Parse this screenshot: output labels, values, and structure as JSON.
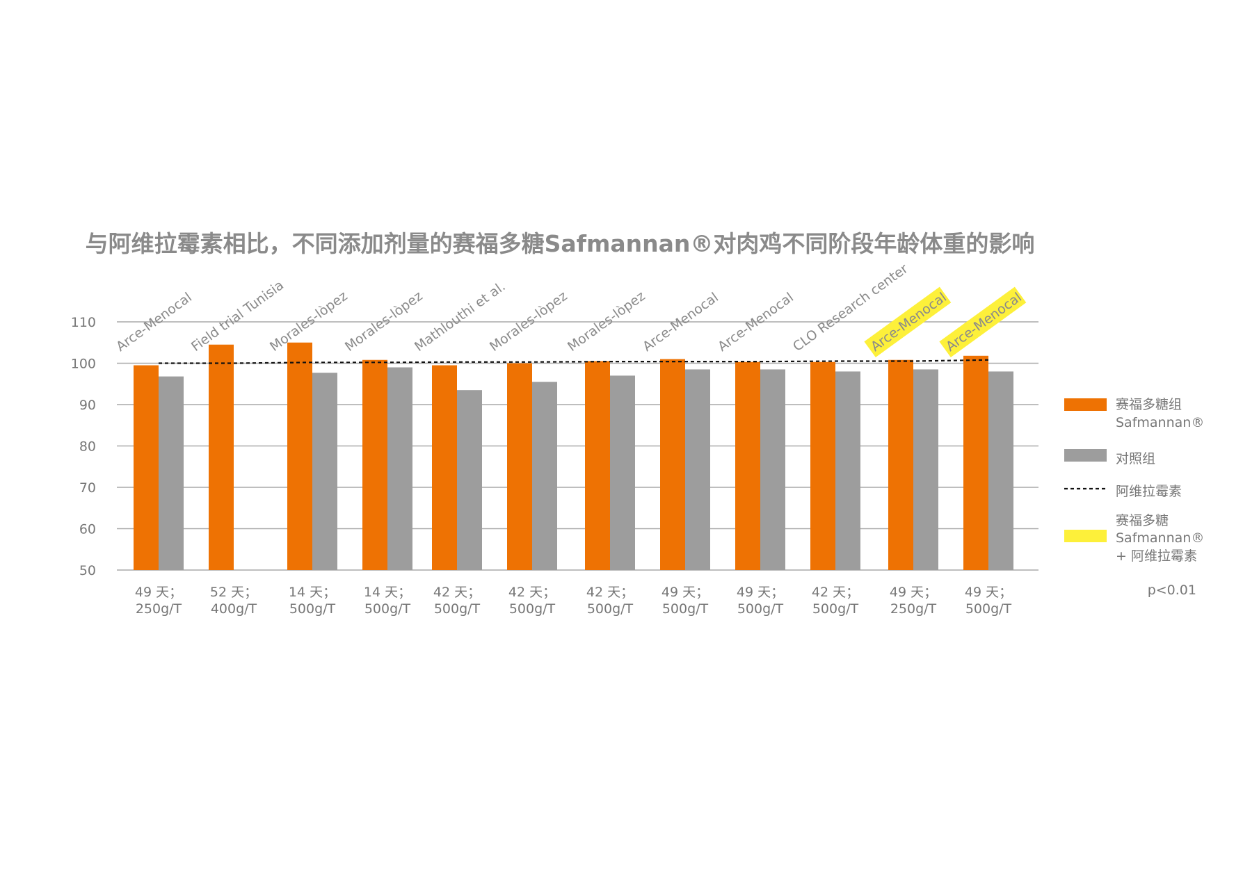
{
  "chart_data": {
    "type": "bar",
    "title": "与阿维拉霉素相比，不同添加剂量的赛福多糖Safmannan®对肉鸡不同阶段年龄体重的影响",
    "ylim": [
      50,
      110
    ],
    "yticks": [
      50,
      60,
      70,
      80,
      90,
      100,
      110
    ],
    "grid": true,
    "legend_position": "right",
    "categories": [
      {
        "line1": "49 天；",
        "line2": "250g/T",
        "study": "Arce-Menocal",
        "highlight": false
      },
      {
        "line1": "52 天；",
        "line2": "400g/T",
        "study": "Field trial Tunisia",
        "highlight": false
      },
      {
        "line1": "14 天；",
        "line2": "500g/T",
        "study": "Morales-lòpez",
        "highlight": false
      },
      {
        "line1": "14 天；",
        "line2": "500g/T",
        "study": "Morales-lòpez",
        "highlight": false
      },
      {
        "line1": "42 天；",
        "line2": "500g/T",
        "study": "Mathlouthi et al.",
        "highlight": false
      },
      {
        "line1": "42 天；",
        "line2": "500g/T",
        "study": "Morales-lòpez",
        "highlight": false
      },
      {
        "line1": "42 天；",
        "line2": "500g/T",
        "study": "Morales-lòpez",
        "highlight": false
      },
      {
        "line1": "49 天；",
        "line2": "500g/T",
        "study": "Arce-Menocal",
        "highlight": false
      },
      {
        "line1": "49 天；",
        "line2": "500g/T",
        "study": "Arce-Menocal",
        "highlight": false
      },
      {
        "line1": "42 天；",
        "line2": "500g/T",
        "study": "CLO Research center",
        "highlight": false
      },
      {
        "line1": "49 天；",
        "line2": "250g/T",
        "study": "Arce-Menocal",
        "highlight": true
      },
      {
        "line1": "49 天；",
        "line2": "500g/T",
        "study": "Arce-Menocal",
        "highlight": true
      }
    ],
    "series": [
      {
        "name": "赛福多糖组 Safmannan®",
        "color": "#ee7203",
        "values": [
          99.5,
          104.5,
          105,
          100.8,
          99.5,
          100,
          100.5,
          101,
          100.3,
          100.3,
          100.8,
          101.8
        ]
      },
      {
        "name": "对照组",
        "color": "#9d9d9d",
        "values": [
          96.8,
          null,
          97.7,
          99,
          93.5,
          95.5,
          97,
          98.5,
          98.5,
          98,
          98.5,
          98
        ]
      }
    ],
    "reference_line": {
      "name": "阿维拉霉素",
      "values": [
        100,
        100,
        100.2,
        100.2,
        100.3,
        100.3,
        100.4,
        100.4,
        100.4,
        100.5,
        100.5,
        100.8
      ]
    },
    "highlight_color": "#fdf03a",
    "legend": [
      {
        "key": "safmannan",
        "lines": [
          "赛福多糖组",
          "Safmannan®"
        ],
        "swatch": "bar",
        "color": "#ee7203"
      },
      {
        "key": "control",
        "lines": [
          "对照组"
        ],
        "swatch": "bar",
        "color": "#9d9d9d"
      },
      {
        "key": "avilamycin",
        "lines": [
          "阿维拉霉素"
        ],
        "swatch": "dashed",
        "color": "#111111"
      },
      {
        "key": "combo",
        "lines": [
          "赛福多糖",
          "Safmannan®",
          "+ 阿维拉霉素"
        ],
        "swatch": "bar",
        "color": "#fdf03a"
      }
    ],
    "annotation": "p<0.01"
  }
}
